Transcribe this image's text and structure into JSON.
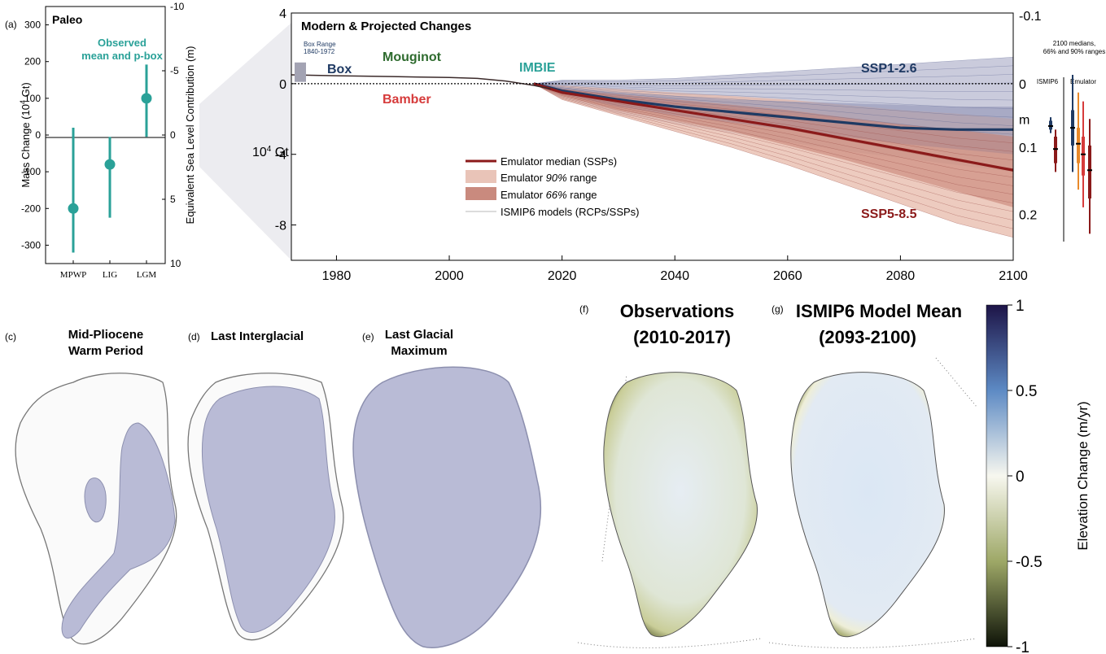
{
  "panels": {
    "a": {
      "letter": "(a)",
      "title": "Paleo",
      "legend": [
        "Observed",
        "mean and p-box"
      ],
      "ylabel_parts": {
        "pre": "Mass Change (10",
        "sup": "4",
        "post": " Gt)"
      },
      "y2label": "Equivalent Sea Level Contribution (m)",
      "yticks": [
        "300",
        "200",
        "100",
        "0",
        "-100",
        "-200",
        "-300"
      ],
      "y2ticks": [
        "-10",
        "-5",
        "0",
        "5",
        "10"
      ],
      "categories": [
        "MPWP",
        "LIG",
        "LGM"
      ]
    },
    "b": {
      "title": "Modern & Projected Changes",
      "box_range": [
        "Box Range",
        "1840-1972"
      ],
      "labels": {
        "box": "Box",
        "mouginot": "Mouginot",
        "bamber": "Bamber",
        "imbie": "IMBIE",
        "ssp126": "SSP1-2.6",
        "ssp585": "SSP5-8.5"
      },
      "unit_parts": {
        "pre": "10",
        "sup": "4",
        "post": " Gt"
      },
      "yticks": [
        "4",
        "0",
        "-4",
        "-8"
      ],
      "xticks": [
        "1980",
        "2000",
        "2020",
        "2040",
        "2060",
        "2080",
        "2100"
      ],
      "sl_ticks": [
        "-0.1",
        "0",
        "m",
        "0.1",
        "0.2"
      ],
      "legend": [
        {
          "label": "Emulator median (SSPs)"
        },
        {
          "pre": "Emulator ",
          "em": "90%",
          "post": " range"
        },
        {
          "pre": "Emulator ",
          "em": "66%",
          "post": " range"
        },
        {
          "label": "ISMIP6 models (RCPs/SSPs)"
        }
      ],
      "medians_note": [
        "2100 medians,",
        "66% and 90% ranges"
      ],
      "ismip6_label": "ISMIP6",
      "emulator_label": "Emulator"
    },
    "c": {
      "letter": "(c)",
      "title": [
        "Mid-Pliocene",
        "Warm Period"
      ]
    },
    "d": {
      "letter": "(d)",
      "title": [
        "Last Interglacial"
      ]
    },
    "e": {
      "letter": "(e)",
      "title": [
        "Last Glacial",
        "Maximum"
      ]
    },
    "f": {
      "letter": "(f)",
      "title": [
        "Observations",
        "(2010-2017)"
      ]
    },
    "g": {
      "letter": "(g)",
      "title": [
        "ISMIP6 Model Mean",
        "(2093-2100)"
      ]
    },
    "colorbar": {
      "label": "Elevation Change (m/yr)",
      "ticks": [
        "1",
        "0.5",
        "0",
        "-0.5",
        "-1"
      ]
    }
  },
  "colors": {
    "teal": "#2aa198",
    "navy": "#1f3a63",
    "darkred": "#8b1a1a",
    "green": "#2e6b2e",
    "red": "#d63b3b",
    "grey_box": "#a3a3b3",
    "ice": "#b9bbd6",
    "orange": "#e8892a"
  },
  "chart_data": [
    {
      "type": "scatter",
      "title": "Paleo",
      "ylabel": "Mass Change (10^4 Gt)",
      "y2label": "Equivalent Sea Level Contribution (m)",
      "categories": [
        "MPWP",
        "LIG",
        "LGM"
      ],
      "series": [
        {
          "name": "Observed mean and p-box",
          "values": [
            -200,
            -80,
            100
          ],
          "low": [
            -320,
            -225,
            -5
          ],
          "high": [
            20,
            -5,
            192
          ]
        }
      ],
      "ylim": [
        -350,
        350
      ],
      "y2lim": [
        10,
        -10
      ],
      "grid": false
    },
    {
      "type": "line",
      "title": "Modern & Projected Changes",
      "ylabel": "10^4 Gt",
      "xlim": [
        1972,
        2100
      ],
      "ylim": [
        -10,
        4
      ],
      "y2ticks": [
        "-0.1",
        "0",
        "m",
        "0.1",
        "0.2"
      ],
      "observed": {
        "x": [
          1972,
          1980,
          1990,
          2000,
          2005,
          2010,
          2015,
          2018
        ],
        "y": [
          0.5,
          0.45,
          0.4,
          0.35,
          0.3,
          0.15,
          -0.1,
          -0.3
        ]
      },
      "box_range_y": [
        0.1,
        1.2
      ],
      "series": [
        {
          "name": "SSP1-2.6",
          "x": [
            2015,
            2020,
            2030,
            2040,
            2050,
            2060,
            2070,
            2080,
            2090,
            2100
          ],
          "median": [
            0,
            -0.4,
            -0.9,
            -1.3,
            -1.6,
            -1.9,
            -2.2,
            -2.5,
            -2.6,
            -2.6
          ],
          "range66": [
            [
              0,
              0
            ],
            [
              -0.2,
              -0.6
            ],
            [
              -0.5,
              -1.3
            ],
            [
              -0.7,
              -1.8
            ],
            [
              -0.9,
              -2.2
            ],
            [
              -1.0,
              -2.6
            ],
            [
              -1.1,
              -3.0
            ],
            [
              -1.2,
              -3.4
            ],
            [
              -1.3,
              -3.7
            ],
            [
              -1.3,
              -4.0
            ]
          ],
          "range90": [
            [
              0,
              0
            ],
            [
              0.2,
              -0.8
            ],
            [
              0.2,
              -1.7
            ],
            [
              0.3,
              -2.3
            ],
            [
              0.5,
              -2.8
            ],
            [
              0.7,
              -3.3
            ],
            [
              0.9,
              -3.8
            ],
            [
              1.1,
              -4.2
            ],
            [
              1.3,
              -4.6
            ],
            [
              1.5,
              -5.0
            ]
          ]
        },
        {
          "name": "SSP5-8.5",
          "x": [
            2015,
            2020,
            2030,
            2040,
            2050,
            2060,
            2070,
            2080,
            2090,
            2100
          ],
          "median": [
            0,
            -0.5,
            -1.0,
            -1.5,
            -2.0,
            -2.5,
            -3.1,
            -3.7,
            -4.3,
            -4.9
          ],
          "range66": [
            [
              0,
              0
            ],
            [
              -0.3,
              -0.7
            ],
            [
              -0.6,
              -1.5
            ],
            [
              -0.9,
              -2.1
            ],
            [
              -1.2,
              -2.7
            ],
            [
              -1.5,
              -3.5
            ],
            [
              -1.9,
              -4.3
            ],
            [
              -2.3,
              -5.2
            ],
            [
              -2.6,
              -6.1
            ],
            [
              -3.0,
              -7.0
            ]
          ],
          "range90": [
            [
              0,
              0
            ],
            [
              -0.1,
              -0.9
            ],
            [
              -0.3,
              -1.8
            ],
            [
              -0.5,
              -2.7
            ],
            [
              -0.7,
              -3.6
            ],
            [
              -0.9,
              -4.6
            ],
            [
              -1.2,
              -5.7
            ],
            [
              -1.5,
              -6.8
            ],
            [
              -1.7,
              -7.9
            ],
            [
              -2.0,
              -8.7
            ]
          ]
        }
      ],
      "medians_2100": [
        {
          "name": "ISMIP6 SSP1-2.6",
          "median": -2.4,
          "range66": [
            -2.1,
            -2.6
          ],
          "range90": [
            -1.9,
            -2.8
          ]
        },
        {
          "name": "ISMIP6 SSP5-8.5",
          "median": -3.7,
          "range66": [
            -3.0,
            -4.5
          ],
          "range90": [
            -2.6,
            -5.0
          ]
        },
        {
          "name": "Emulator SSP1-2.6",
          "median": -2.5,
          "range66": [
            -1.5,
            -3.5
          ],
          "range90": [
            0.5,
            -5.0
          ]
        },
        {
          "name": "Emulator SSP2-4.5",
          "median": -3.4,
          "range66": [
            -2.5,
            -4.5
          ],
          "range90": [
            -0.5,
            -6.0
          ]
        },
        {
          "name": "Emulator SSP3-7.0",
          "median": -4.0,
          "range66": [
            -3.0,
            -5.2
          ],
          "range90": [
            -1.0,
            -7.0
          ]
        },
        {
          "name": "Emulator SSP5-8.5",
          "median": -4.9,
          "range66": [
            -3.5,
            -6.5
          ],
          "range90": [
            -2.0,
            -8.5
          ]
        }
      ],
      "grid": false
    },
    {
      "type": "heatmap",
      "title": "Elevation Change (m/yr)",
      "colorbar_ticks": [
        1,
        0.5,
        0,
        -0.5,
        -1
      ],
      "clim": [
        -1,
        1
      ]
    }
  ]
}
